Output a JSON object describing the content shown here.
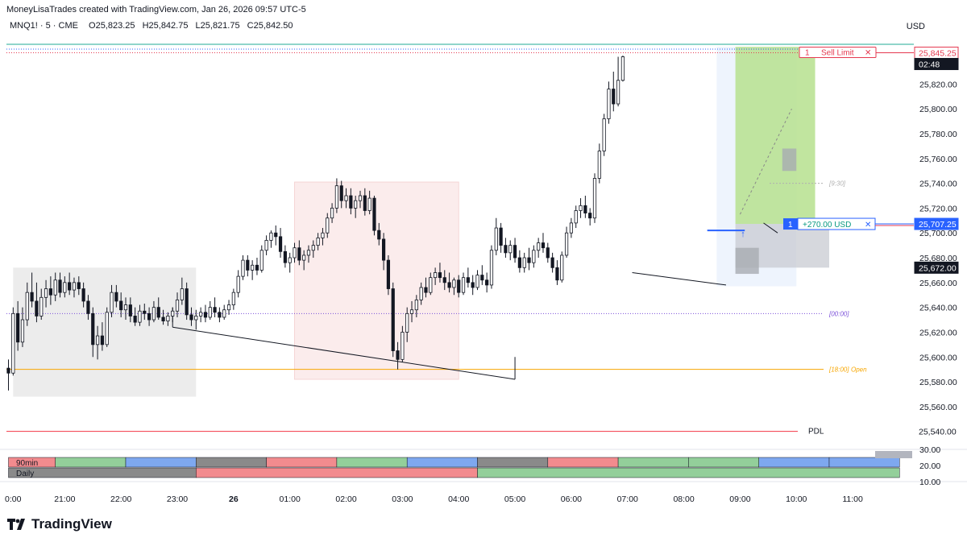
{
  "header": {
    "attribution": "MoneyLisaTrades created with TradingView.com, Jan 26, 2026 09:57 UTC-5",
    "symbol": "MNQ1! · 5 · CME",
    "open": "O25,823.25",
    "high": "H25,842.75",
    "low": "L25,821.75",
    "close": "C25,842.50",
    "currency": "USD"
  },
  "brand": {
    "name": "TradingView"
  },
  "colors": {
    "up": "#131722",
    "down": "#131722",
    "upFill": "#ffffff",
    "downFill": "#131722",
    "asiaBox": "#ececec",
    "londonBox": "#fbecec",
    "nyBox": "#eef4fd",
    "profit": "#b6e08e",
    "loss": "#c8cbd1",
    "sellLimit": "#e53950",
    "position": "#2962ff",
    "pdl": "#f23645",
    "mnOpen": "#f7a600",
    "midnight": "#7b4fd9"
  },
  "chart_data": [
    {
      "type": "candlestick",
      "ylim": [
        25532,
        25854
      ],
      "y_ticks": [
        "25,560.00",
        "25,580.00",
        "25,600.00",
        "25,620.00",
        "25,640.00",
        "25,660.00",
        "25,680.00",
        "25,700.00",
        "25,720.00",
        "25,740.00",
        "25,760.00",
        "25,780.00",
        "25,800.00",
        "25,820.00"
      ],
      "y_tick_values": [
        25560,
        25580,
        25600,
        25620,
        25640,
        25660,
        25680,
        25700,
        25720,
        25740,
        25760,
        25780,
        25800,
        25820
      ],
      "x_ticks": [
        {
          "label": "0:00",
          "bar": 0
        },
        {
          "label": "21:00",
          "bar": 12
        },
        {
          "label": "22:00",
          "bar": 24
        },
        {
          "label": "23:00",
          "bar": 36
        },
        {
          "label": "26",
          "bar": 48,
          "bold": true
        },
        {
          "label": "01:00",
          "bar": 60
        },
        {
          "label": "02:00",
          "bar": 72
        },
        {
          "label": "03:00",
          "bar": 84
        },
        {
          "label": "04:00",
          "bar": 96
        },
        {
          "label": "05:00",
          "bar": 108
        },
        {
          "label": "06:00",
          "bar": 120
        },
        {
          "label": "07:00",
          "bar": 132
        },
        {
          "label": "08:00",
          "bar": 144
        },
        {
          "label": "09:00",
          "bar": 156
        },
        {
          "label": "10:00",
          "bar": 168
        },
        {
          "label": "11:00",
          "bar": 180
        }
      ],
      "candles_ohlc": [
        [
          25591,
          25598,
          25573,
          25587
        ],
        [
          25587,
          25640,
          25585,
          25635
        ],
        [
          25635,
          25645,
          25605,
          25612
        ],
        [
          25612,
          25640,
          25608,
          25630
        ],
        [
          25630,
          25660,
          25625,
          25652
        ],
        [
          25652,
          25668,
          25640,
          25645
        ],
        [
          25645,
          25660,
          25628,
          25633
        ],
        [
          25633,
          25655,
          25630,
          25648
        ],
        [
          25648,
          25662,
          25640,
          25655
        ],
        [
          25655,
          25665,
          25642,
          25650
        ],
        [
          25650,
          25668,
          25645,
          25662
        ],
        [
          25662,
          25668,
          25648,
          25652
        ],
        [
          25652,
          25665,
          25648,
          25660
        ],
        [
          25660,
          25668,
          25650,
          25654
        ],
        [
          25654,
          25664,
          25648,
          25660
        ],
        [
          25660,
          25665,
          25650,
          25655
        ],
        [
          25655,
          25660,
          25640,
          25645
        ],
        [
          25645,
          25650,
          25630,
          25635
        ],
        [
          25635,
          25640,
          25600,
          25610
        ],
        [
          25610,
          25625,
          25598,
          25617
        ],
        [
          25617,
          25628,
          25605,
          25610
        ],
        [
          25610,
          25640,
          25608,
          25636
        ],
        [
          25636,
          25658,
          25632,
          25652
        ],
        [
          25652,
          25658,
          25640,
          25645
        ],
        [
          25645,
          25652,
          25632,
          25638
        ],
        [
          25638,
          25648,
          25630,
          25642
        ],
        [
          25642,
          25648,
          25628,
          25633
        ],
        [
          25633,
          25640,
          25625,
          25628
        ],
        [
          25628,
          25642,
          25625,
          25637
        ],
        [
          25637,
          25643,
          25630,
          25635
        ],
        [
          25635,
          25640,
          25625,
          25630
        ],
        [
          25630,
          25645,
          25628,
          25640
        ],
        [
          25640,
          25648,
          25630,
          25632
        ],
        [
          25632,
          25638,
          25626,
          25629
        ],
        [
          25629,
          25636,
          25625,
          25633
        ],
        [
          25633,
          25640,
          25628,
          25637
        ],
        [
          25637,
          25652,
          25632,
          25646
        ],
        [
          25646,
          25664,
          25642,
          25655
        ],
        [
          25655,
          25660,
          25630,
          25634
        ],
        [
          25634,
          25640,
          25625,
          25630
        ],
        [
          25630,
          25638,
          25622,
          25633
        ],
        [
          25633,
          25640,
          25628,
          25636
        ],
        [
          25636,
          25642,
          25628,
          25632
        ],
        [
          25632,
          25645,
          25630,
          25640
        ],
        [
          25640,
          25648,
          25632,
          25636
        ],
        [
          25636,
          25640,
          25628,
          25632
        ],
        [
          25632,
          25642,
          25630,
          25638
        ],
        [
          25638,
          25646,
          25634,
          25642
        ],
        [
          25642,
          25655,
          25638,
          25652
        ],
        [
          25652,
          25670,
          25648,
          25665
        ],
        [
          25665,
          25682,
          25662,
          25678
        ],
        [
          25678,
          25682,
          25665,
          25670
        ],
        [
          25670,
          25678,
          25662,
          25674
        ],
        [
          25674,
          25680,
          25666,
          25670
        ],
        [
          25670,
          25690,
          25668,
          25686
        ],
        [
          25686,
          25698,
          25682,
          25694
        ],
        [
          25694,
          25702,
          25688,
          25700
        ],
        [
          25700,
          25706,
          25690,
          25697
        ],
        [
          25697,
          25704,
          25680,
          25685
        ],
        [
          25685,
          25690,
          25672,
          25676
        ],
        [
          25676,
          25684,
          25668,
          25680
        ],
        [
          25680,
          25692,
          25676,
          25688
        ],
        [
          25688,
          25694,
          25674,
          25678
        ],
        [
          25678,
          25686,
          25670,
          25682
        ],
        [
          25682,
          25690,
          25676,
          25686
        ],
        [
          25686,
          25694,
          25680,
          25690
        ],
        [
          25690,
          25700,
          25686,
          25696
        ],
        [
          25696,
          25704,
          25690,
          25700
        ],
        [
          25700,
          25716,
          25696,
          25712
        ],
        [
          25712,
          25724,
          25708,
          25720
        ],
        [
          25720,
          25744,
          25716,
          25738
        ],
        [
          25738,
          25742,
          25720,
          25726
        ],
        [
          25726,
          25736,
          25720,
          25730
        ],
        [
          25730,
          25736,
          25715,
          25720
        ],
        [
          25720,
          25730,
          25712,
          25726
        ],
        [
          25726,
          25734,
          25720,
          25730
        ],
        [
          25730,
          25736,
          25714,
          25718
        ],
        [
          25718,
          25734,
          25715,
          25728
        ],
        [
          25728,
          25730,
          25698,
          25702
        ],
        [
          25702,
          25708,
          25690,
          25695
        ],
        [
          25695,
          25700,
          25670,
          25678
        ],
        [
          25678,
          25682,
          25650,
          25655
        ],
        [
          25655,
          25660,
          25600,
          25605
        ],
        [
          25605,
          25612,
          25590,
          25598
        ],
        [
          25598,
          25625,
          25596,
          25620
        ],
        [
          25620,
          25640,
          25612,
          25635
        ],
        [
          25635,
          25645,
          25628,
          25638
        ],
        [
          25638,
          25650,
          25632,
          25646
        ],
        [
          25646,
          25660,
          25642,
          25656
        ],
        [
          25656,
          25664,
          25648,
          25652
        ],
        [
          25652,
          25668,
          25650,
          25664
        ],
        [
          25664,
          25672,
          25658,
          25668
        ],
        [
          25668,
          25676,
          25660,
          25664
        ],
        [
          25664,
          25670,
          25654,
          25660
        ],
        [
          25660,
          25668,
          25652,
          25656
        ],
        [
          25656,
          25664,
          25650,
          25662
        ],
        [
          25662,
          25666,
          25648,
          25652
        ],
        [
          25652,
          25668,
          25650,
          25664
        ],
        [
          25664,
          25672,
          25656,
          25660
        ],
        [
          25660,
          25666,
          25650,
          25656
        ],
        [
          25656,
          25670,
          25654,
          25666
        ],
        [
          25666,
          25674,
          25658,
          25662
        ],
        [
          25662,
          25668,
          25652,
          25658
        ],
        [
          25658,
          25690,
          25655,
          25686
        ],
        [
          25686,
          25712,
          25682,
          25704
        ],
        [
          25704,
          25708,
          25684,
          25690
        ],
        [
          25690,
          25696,
          25680,
          25684
        ],
        [
          25684,
          25694,
          25678,
          25690
        ],
        [
          25690,
          25696,
          25676,
          25680
        ],
        [
          25680,
          25686,
          25668,
          25672
        ],
        [
          25672,
          25684,
          25668,
          25680
        ],
        [
          25680,
          25688,
          25670,
          25676
        ],
        [
          25676,
          25690,
          25672,
          25686
        ],
        [
          25686,
          25696,
          25680,
          25692
        ],
        [
          25692,
          25700,
          25684,
          25688
        ],
        [
          25688,
          25692,
          25676,
          25680
        ],
        [
          25680,
          25684,
          25668,
          25672
        ],
        [
          25672,
          25678,
          25658,
          25662
        ],
        [
          25662,
          25685,
          25660,
          25682
        ],
        [
          25682,
          25705,
          25680,
          25700
        ],
        [
          25700,
          25712,
          25696,
          25708
        ],
        [
          25708,
          25722,
          25704,
          25718
        ],
        [
          25718,
          25728,
          25712,
          25722
        ],
        [
          25722,
          25730,
          25712,
          25716
        ],
        [
          25716,
          25720,
          25706,
          25712
        ],
        [
          25712,
          25748,
          25708,
          25744
        ],
        [
          25744,
          25772,
          25740,
          25766
        ],
        [
          25766,
          25796,
          25762,
          25792
        ],
        [
          25792,
          25822,
          25788,
          25816
        ],
        [
          25816,
          25830,
          25798,
          25804
        ],
        [
          25804,
          25842,
          25802,
          25823
        ],
        [
          25823,
          25843,
          25822,
          25842
        ]
      ],
      "price_labels": [
        {
          "text": "25,845.25",
          "value": 25845.25,
          "style": "sell"
        },
        {
          "text": "02:48",
          "value": 25838.5,
          "style": "countdown"
        },
        {
          "text": "25,707.25",
          "value": 25707.25,
          "style": "position"
        },
        {
          "text": "25,672.00",
          "value": 25672,
          "style": "dark"
        },
        {
          "text": "25,540.00",
          "value": 25540,
          "style": "plain"
        }
      ],
      "orders": {
        "sell_limit": {
          "qty": "1",
          "label": "Sell Limit",
          "price": 25845.25
        },
        "position": {
          "qty": "1",
          "pnl": "+270.00 USD",
          "price": 25707.25
        }
      },
      "levels": [
        {
          "label": "PDL",
          "price": 25540
        },
        {
          "label": "[18:00]",
          "extra": "Open",
          "price": 25590
        },
        {
          "label": "[00:00]",
          "price": 25635
        },
        {
          "label": "[9:30]",
          "price": 25740
        }
      ],
      "sessions": [
        {
          "name": "asia",
          "from_bar": 1,
          "to_bar": 40,
          "low": 25568,
          "high": 25672
        },
        {
          "name": "london",
          "from_bar": 61,
          "to_bar": 96,
          "low": 25582,
          "high": 25741
        },
        {
          "name": "ny",
          "from_bar": 151,
          "to_bar": 168,
          "low": 25657,
          "high": 25850
        }
      ],
      "position_zone": {
        "entry": 25707.25,
        "target": 25850,
        "stop": 25672,
        "from_bar": 155,
        "to_bar": 172
      },
      "fvg": [
        {
          "from_bar": 165,
          "to_bar": 168,
          "low": 25750,
          "high": 25768
        },
        {
          "from_bar": 155,
          "to_bar": 160,
          "low": 25667,
          "high": 25688
        }
      ]
    },
    {
      "type": "session-bands",
      "rows": [
        {
          "label": "90min",
          "segments": [
            {
              "from": 0,
              "to": 10,
              "color": "#f28b8e"
            },
            {
              "from": 10,
              "to": 25,
              "color": "#93cf9a"
            },
            {
              "from": 25,
              "to": 40,
              "color": "#7ea8ef"
            },
            {
              "from": 40,
              "to": 55,
              "color": "#8a8a8a"
            },
            {
              "from": 55,
              "to": 70,
              "color": "#f28b8e"
            },
            {
              "from": 70,
              "to": 85,
              "color": "#93cf9a"
            },
            {
              "from": 85,
              "to": 100,
              "color": "#7ea8ef"
            },
            {
              "from": 100,
              "to": 115,
              "color": "#8a8a8a"
            },
            {
              "from": 115,
              "to": 130,
              "color": "#f28b8e"
            },
            {
              "from": 130,
              "to": 145,
              "color": "#93cf9a"
            },
            {
              "from": 145,
              "to": 160,
              "color": "#93cf9a"
            },
            {
              "from": 160,
              "to": 175,
              "color": "#7ea8ef"
            },
            {
              "from": 175,
              "to": 190,
              "color": "#7ea8ef"
            }
          ]
        },
        {
          "label": "Daily",
          "segments": [
            {
              "from": 0,
              "to": 40,
              "color": "#8a8a8a"
            },
            {
              "from": 40,
              "to": 100,
              "color": "#f28b8e"
            },
            {
              "from": 100,
              "to": 190,
              "color": "#93cf9a"
            }
          ]
        }
      ],
      "y_ticks": [
        "30.00",
        "20.00",
        "10.00"
      ],
      "y_tick_values": [
        30,
        20,
        10
      ],
      "ylim": [
        8,
        32
      ]
    }
  ]
}
